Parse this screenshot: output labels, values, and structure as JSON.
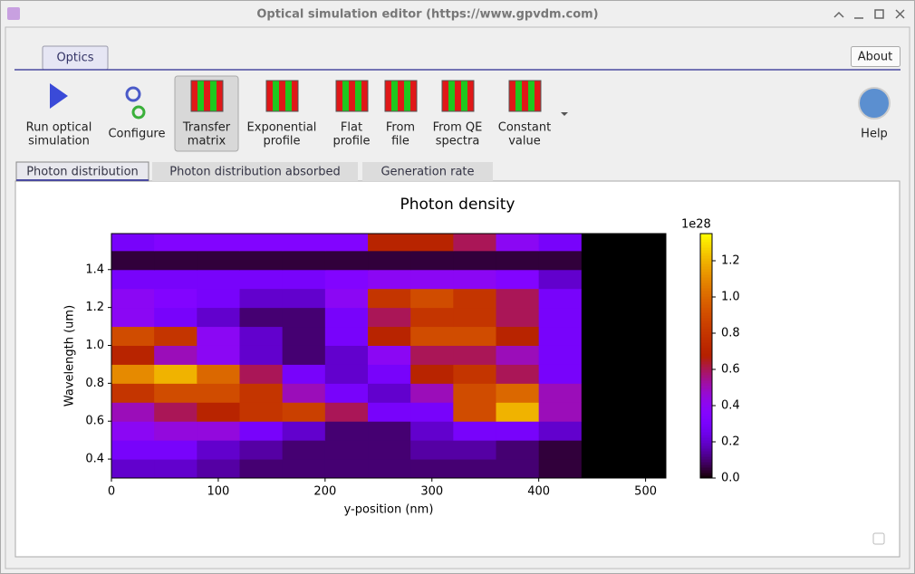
{
  "window": {
    "title": "Optical simulation editor (https://www.gpvdm.com)"
  },
  "tabs": [
    "Optics"
  ],
  "about": "About",
  "toolbar": [
    [
      "Run optical",
      "simulation"
    ],
    [
      "Configure"
    ],
    [
      "Transfer",
      "matrix"
    ],
    [
      "Exponential",
      "profile"
    ],
    [
      "Flat",
      "profile"
    ],
    [
      "From",
      "file"
    ],
    [
      "From QE",
      "spectra"
    ],
    [
      "Constant",
      "value"
    ]
  ],
  "help": "Help",
  "subtabs": [
    "Photon distribution",
    "Photon distribution absorbed",
    "Generation rate"
  ],
  "chart_data": {
    "type": "heatmap",
    "title": "Photon density",
    "x_label": "y-position (nm)",
    "y_label": "Wavelength (um)",
    "colorbar_label": "1e28",
    "colormap": "gnuplot",
    "xbins": [
      0,
      40,
      80,
      120,
      160,
      200,
      240,
      280,
      320,
      360,
      400,
      440,
      480,
      519
    ],
    "ybins": [
      0.3,
      0.4,
      0.5,
      0.6,
      0.7,
      0.8,
      0.9,
      1.0,
      1.1,
      1.2,
      1.3,
      1.4,
      1.5,
      1.59
    ],
    "z": [
      [
        0.2,
        0.2,
        0.15,
        0.1,
        0.1,
        0.1,
        0.1,
        0.1,
        0.1,
        0.1,
        0.05,
        0,
        0
      ],
      [
        0.3,
        0.3,
        0.2,
        0.15,
        0.1,
        0.1,
        0.1,
        0.15,
        0.15,
        0.1,
        0.05,
        0,
        0
      ],
      [
        0.4,
        0.45,
        0.45,
        0.3,
        0.2,
        0.1,
        0.1,
        0.2,
        0.3,
        0.3,
        0.2,
        0,
        0
      ],
      [
        0.5,
        0.6,
        0.7,
        0.8,
        0.85,
        0.6,
        0.3,
        0.3,
        0.9,
        1.2,
        0.5,
        0,
        0
      ],
      [
        0.8,
        0.9,
        0.9,
        0.8,
        0.5,
        0.3,
        0.2,
        0.5,
        0.9,
        1.0,
        0.5,
        0,
        0
      ],
      [
        1.1,
        1.2,
        1.0,
        0.6,
        0.3,
        0.2,
        0.3,
        0.7,
        0.8,
        0.6,
        0.3,
        0,
        0
      ],
      [
        0.7,
        0.5,
        0.4,
        0.2,
        0.1,
        0.2,
        0.4,
        0.6,
        0.6,
        0.5,
        0.3,
        0,
        0
      ],
      [
        0.9,
        0.8,
        0.4,
        0.2,
        0.1,
        0.3,
        0.7,
        0.9,
        0.9,
        0.7,
        0.3,
        0,
        0
      ],
      [
        0.4,
        0.3,
        0.2,
        0.1,
        0.1,
        0.3,
        0.6,
        0.8,
        0.8,
        0.6,
        0.3,
        0,
        0
      ],
      [
        0.4,
        0.35,
        0.3,
        0.2,
        0.2,
        0.4,
        0.8,
        0.9,
        0.8,
        0.6,
        0.3,
        0,
        0
      ],
      [
        0.3,
        0.3,
        0.3,
        0.3,
        0.3,
        0.35,
        0.4,
        0.4,
        0.4,
        0.35,
        0.2,
        0,
        0
      ],
      [
        0.05,
        0.05,
        0.05,
        0.05,
        0.05,
        0.05,
        0.05,
        0.05,
        0.05,
        0.05,
        0.05,
        0,
        0
      ],
      [
        0.3,
        0.35,
        0.35,
        0.35,
        0.35,
        0.35,
        0.7,
        0.7,
        0.6,
        0.4,
        0.3,
        0,
        0
      ]
    ],
    "xlim": [
      0,
      519
    ],
    "ylim": [
      0.3,
      1.59
    ],
    "zlim": [
      0,
      1.35
    ],
    "xticks": [
      0,
      100,
      200,
      300,
      400,
      500
    ],
    "yticks": [
      0.4,
      0.6,
      0.8,
      {
        "value": 1,
        "label": "1.0"
      },
      1.2,
      1.4
    ],
    "zticks": [
      {
        "value": 0,
        "label": "0.0"
      },
      0.2,
      0.4,
      0.6,
      0.8,
      {
        "value": 1,
        "label": "1.0"
      },
      1.2
    ]
  }
}
